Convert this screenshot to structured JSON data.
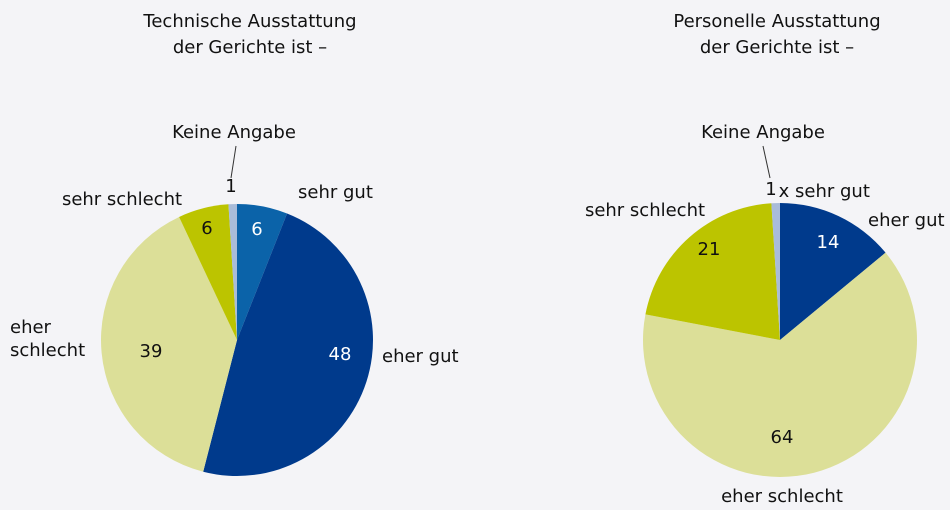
{
  "chart_data": [
    {
      "type": "pie",
      "title": [
        "Technische Ausstattung",
        "der Gerichte ist –"
      ],
      "categories": [
        "sehr gut",
        "eher gut",
        "eher schlecht",
        "sehr schlecht",
        "Keine Angabe"
      ],
      "values": [
        6,
        48,
        39,
        6,
        1
      ],
      "colors": [
        "#0b63a9",
        "#003a8c",
        "#dcdf98",
        "#bcc400",
        "#a9bcd9"
      ]
    },
    {
      "type": "pie",
      "title": [
        "Personelle Ausstattung",
        "der Gerichte ist –"
      ],
      "categories": [
        "sehr gut",
        "eher gut",
        "eher schlecht",
        "sehr schlecht",
        "Keine Angabe"
      ],
      "values": [
        0,
        14,
        64,
        21,
        1
      ],
      "value_labels": [
        "x",
        "14",
        "64",
        "21",
        "1"
      ],
      "colors": [
        "#0b63a9",
        "#003a8c",
        "#dcdf98",
        "#bcc400",
        "#a9bcd9"
      ]
    }
  ]
}
